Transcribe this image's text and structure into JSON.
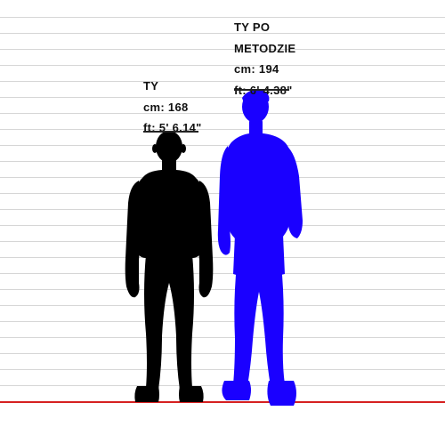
{
  "chart": {
    "person1": {
      "name": "TY",
      "cm_text": "cm: 168",
      "ft_text": "ft: 5' 6.14\"",
      "color": "#000000"
    },
    "person2": {
      "name_line1": "TY PO",
      "name_line2": "METODZIE",
      "cm_text": "cm: 194",
      "ft_text": "ft: 6' 4.38\"",
      "color": "#1a00ff"
    },
    "ground_color": "#d62020"
  }
}
